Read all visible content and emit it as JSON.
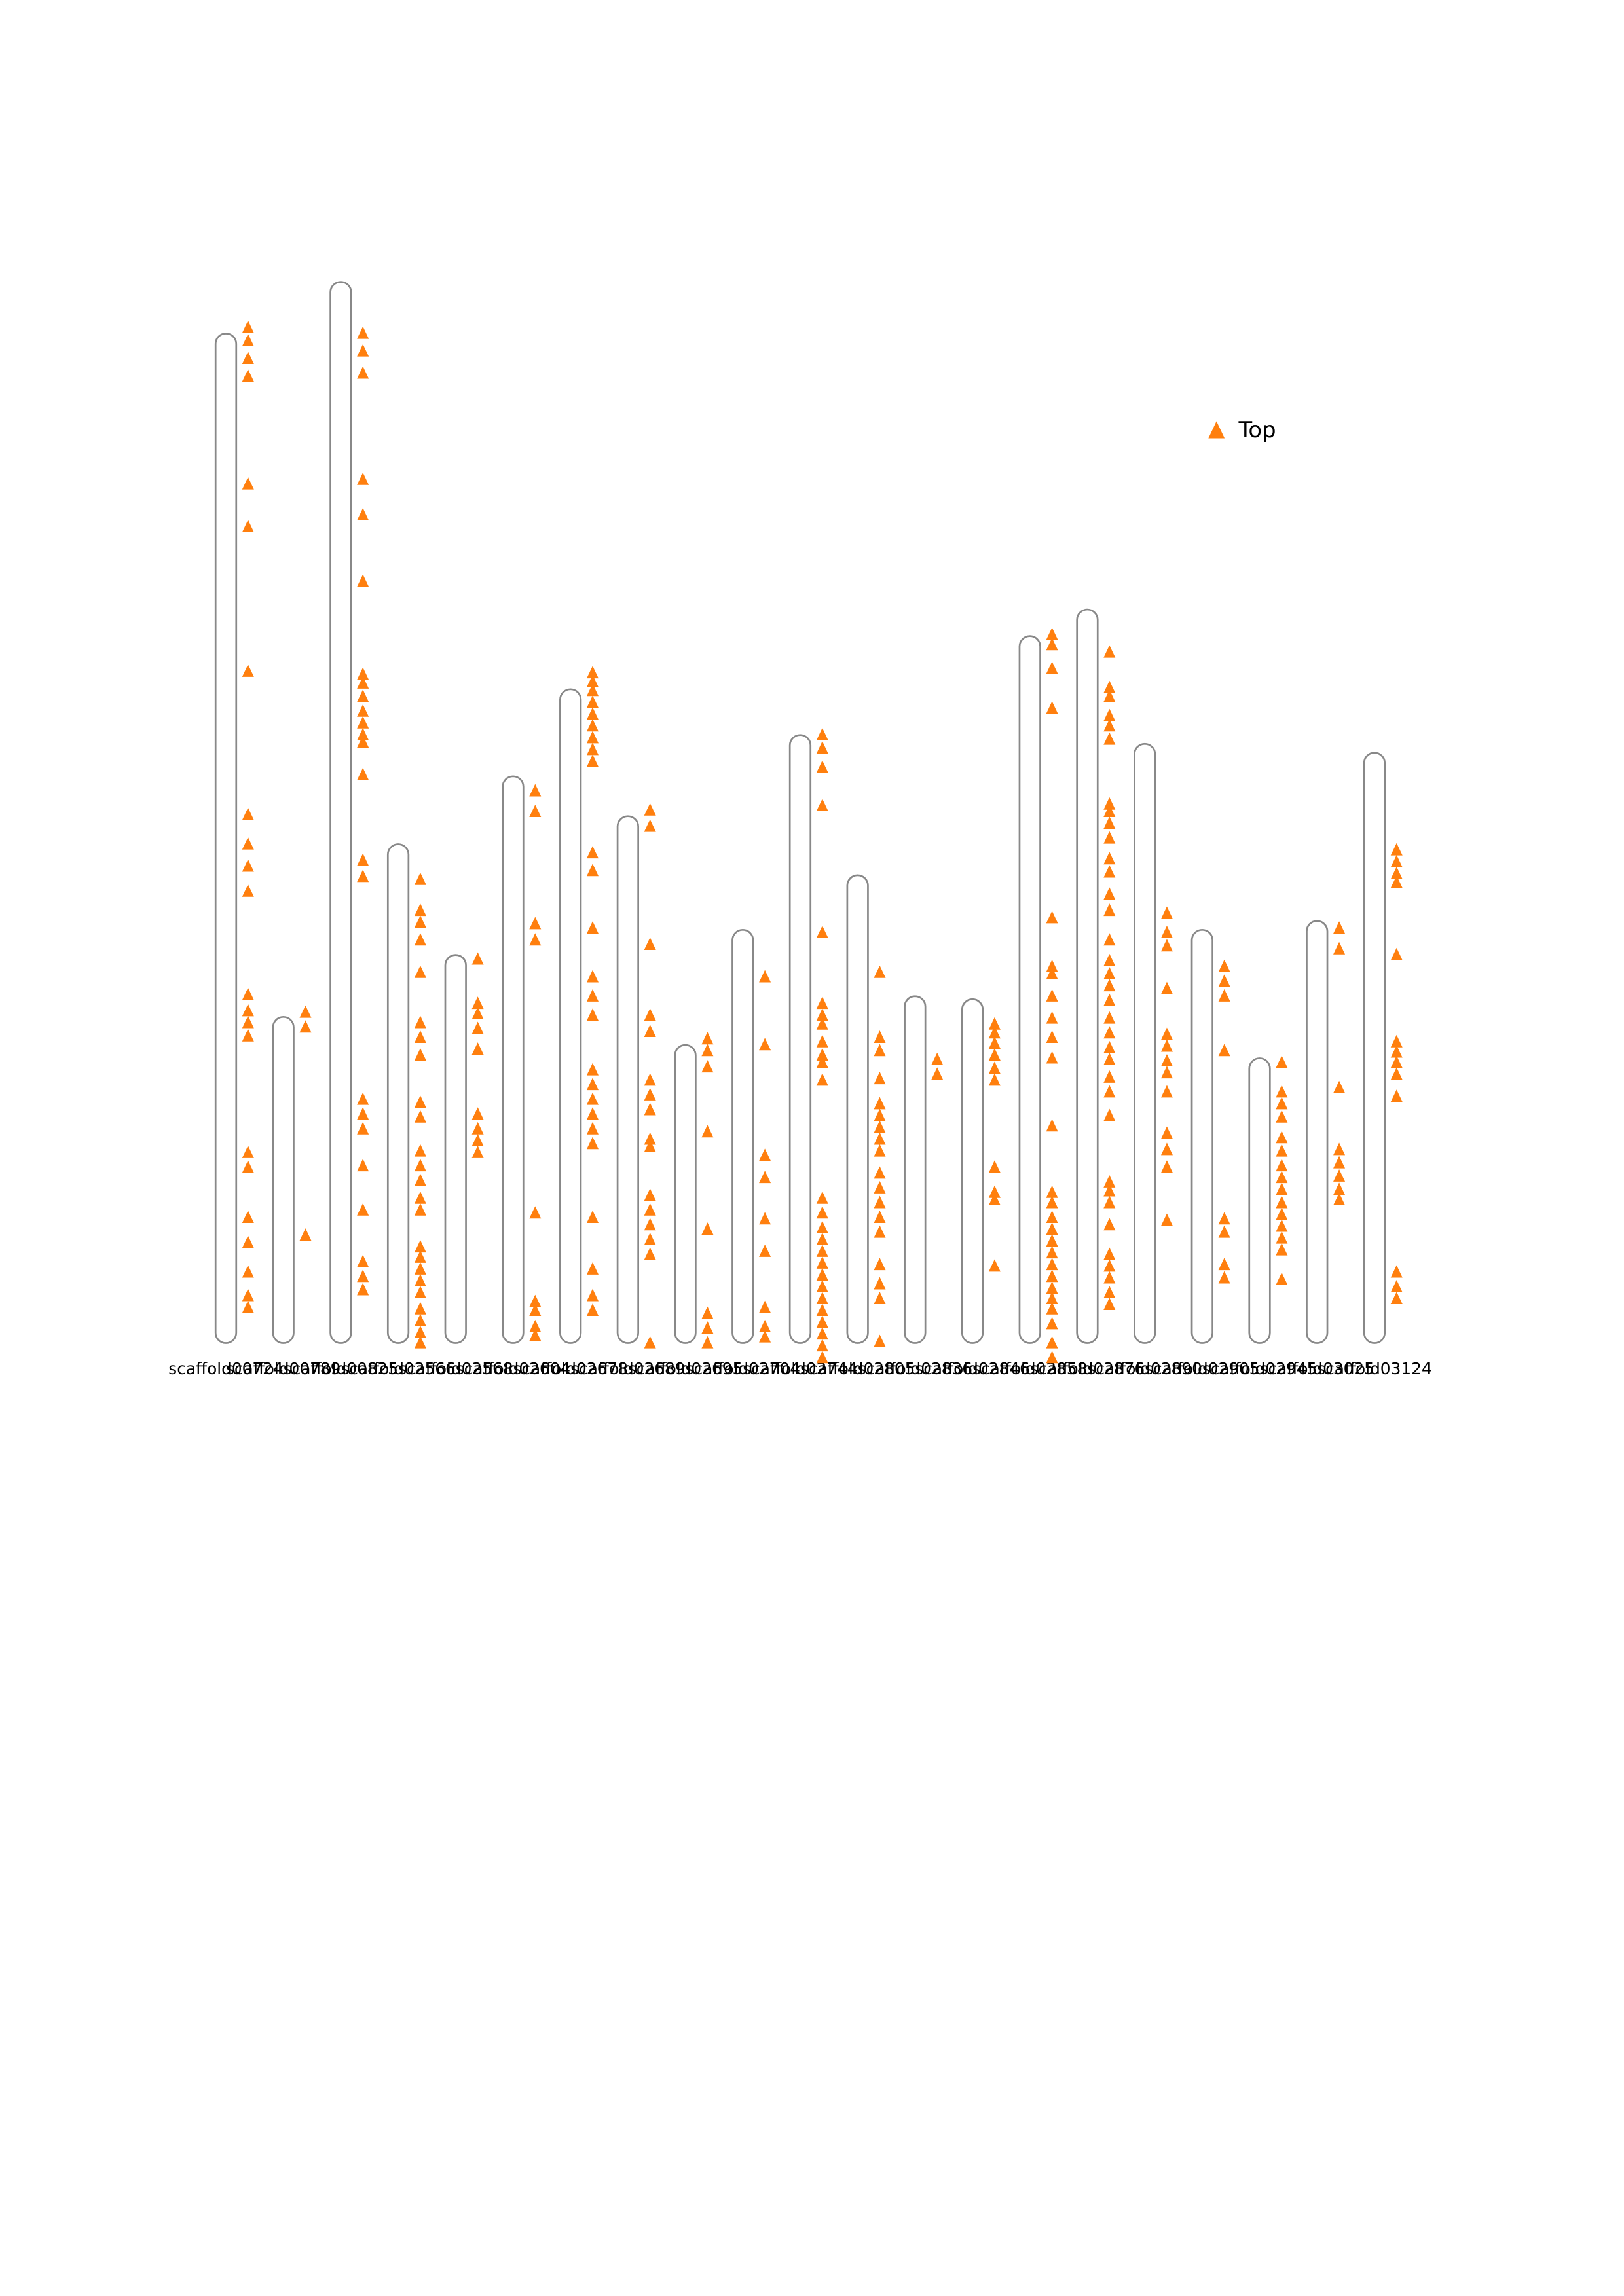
{
  "chart_data": {
    "type": "ideogram",
    "categories": [
      "scaffold00724",
      "scaffold00789",
      "scaffold00825",
      "scaffold02566",
      "scaffold02568",
      "scaffold02604",
      "scaffold02678",
      "scaffold02689",
      "scaffold02695",
      "scaffold02704",
      "scaffold02744",
      "scaffold02805",
      "scaffold02836",
      "scaffold02846",
      "scaffold02858",
      "scaffold02876",
      "scaffold02890",
      "scaffold02905",
      "scaffold02945",
      "scaffold03025",
      "scaffold03124"
    ],
    "values": [
      684,
      221,
      719,
      338,
      263,
      384,
      443,
      357,
      202,
      280,
      412,
      317,
      235,
      233,
      479,
      497,
      406,
      280,
      193,
      286,
      400
    ],
    "color": "#888888",
    "ylim": [
      0,
      720
    ],
    "legend": "upper right",
    "series": [
      {
        "name": "Top",
        "color": "#ff7f0e",
        "positions": [
          [
            688,
            679,
            667,
            655,
            582,
            553,
            455,
            358,
            338,
            323,
            306,
            236,
            225,
            217,
            208,
            129,
            119,
            85,
            68,
            48,
            32,
            24
          ],
          [
            224,
            214,
            73
          ],
          [
            684,
            672,
            657,
            585,
            561,
            516,
            453,
            447,
            438,
            428,
            420,
            412,
            407,
            385,
            327,
            316,
            165,
            155,
            145,
            120,
            90,
            55,
            45,
            36
          ],
          [
            314,
            293,
            285,
            273,
            251,
            217,
            207,
            195,
            163,
            153,
            130,
            120,
            110,
            98,
            90,
            65,
            58,
            50,
            42,
            34,
            23,
            15,
            7,
            0
          ],
          [
            260,
            230,
            223,
            213,
            199,
            155,
            145,
            137,
            129
          ],
          [
            374,
            360,
            284,
            273,
            88,
            28,
            22,
            11,
            5
          ],
          [
            454,
            448,
            442,
            434,
            426,
            418,
            410,
            402,
            394,
            332,
            320,
            281,
            248,
            235,
            222,
            185,
            175,
            165,
            155,
            145,
            135,
            85,
            50,
            32,
            22
          ],
          [
            361,
            350,
            270,
            222,
            211,
            178,
            168,
            158,
            138,
            133,
            100,
            90,
            80,
            70,
            60,
            0
          ],
          [
            206,
            198,
            187,
            143,
            77,
            20,
            10,
            0
          ],
          [
            248,
            202,
            127,
            112,
            84,
            62,
            24,
            11,
            4
          ],
          [
            412,
            403,
            390,
            364,
            278,
            230,
            222,
            216,
            204,
            195,
            190,
            178,
            98,
            88,
            78,
            70,
            62,
            54,
            46,
            38,
            30,
            22,
            14,
            6,
            -2,
            -10
          ],
          [
            251,
            207,
            198,
            179,
            162,
            154,
            146,
            138,
            130,
            115,
            105,
            95,
            85,
            75,
            53,
            40,
            30,
            1
          ],
          [
            192,
            182
          ],
          [
            216,
            210,
            203,
            195,
            186,
            178,
            119,
            102,
            97,
            52
          ],
          [
            480,
            473,
            457,
            430,
            288,
            255,
            250,
            235,
            220,
            207,
            193,
            147,
            102,
            95,
            85,
            77,
            69,
            61,
            53,
            45,
            37,
            30,
            23,
            13,
            0,
            -10
          ],
          [
            468,
            444,
            438,
            425,
            418,
            409,
            365,
            360,
            352,
            342,
            328,
            319,
            304,
            293,
            273,
            259,
            250,
            242,
            232,
            220,
            210,
            200,
            192,
            180,
            170,
            154,
            109,
            103,
            95,
            80,
            60,
            52,
            44,
            34,
            26
          ],
          [
            291,
            278,
            269,
            240,
            209,
            201,
            191,
            183,
            170,
            142,
            131,
            119,
            83
          ],
          [
            255,
            245,
            235,
            198,
            84,
            75,
            53,
            44
          ],
          [
            190,
            170,
            162,
            153,
            139,
            130,
            120,
            112,
            104,
            95,
            87,
            79,
            71,
            63,
            43
          ],
          [
            281,
            267,
            173,
            131,
            122,
            113,
            104,
            97
          ],
          [
            334,
            326,
            318,
            312,
            263,
            204,
            197,
            190,
            182,
            167,
            48,
            38,
            30
          ]
        ]
      }
    ]
  }
}
